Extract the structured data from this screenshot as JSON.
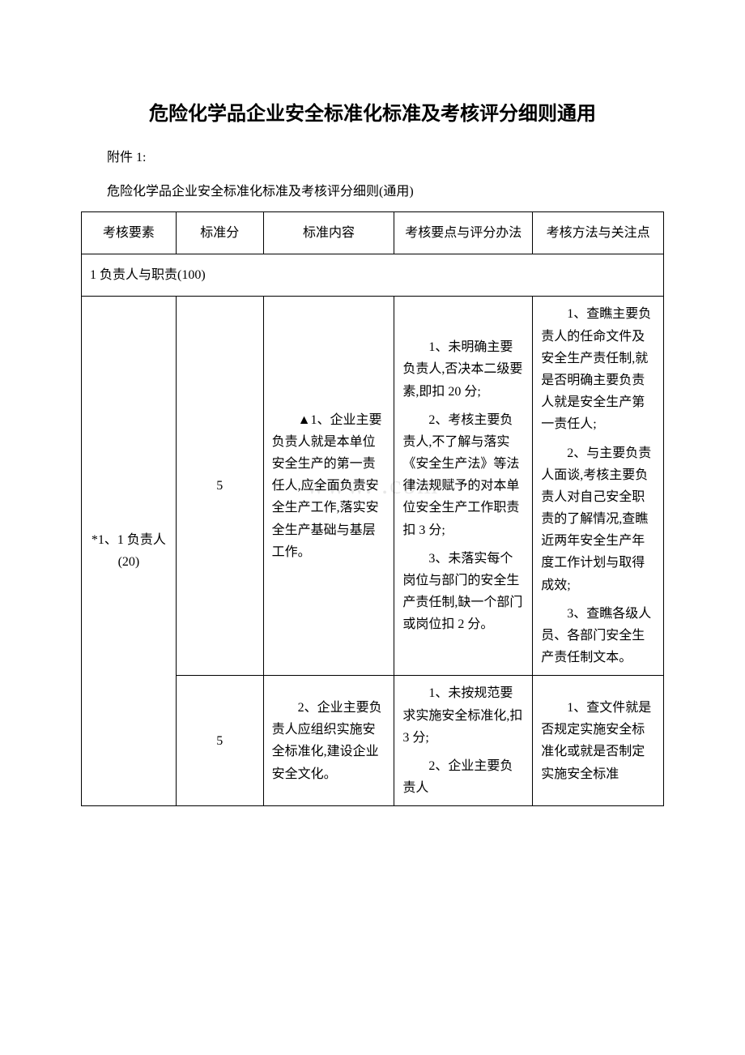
{
  "document": {
    "title": "危险化学品企业安全标准化标准及考核评分细则通用",
    "appendix_label": "附件 1:",
    "subtitle": "危险化学品企业安全标准化标准及考核评分细则(通用)"
  },
  "watermark": "www.            .com",
  "table": {
    "headers": {
      "col1": "考核要素",
      "col2": "标准分",
      "col3": "标准内容",
      "col4": "考核要点与评分办法",
      "col5": "考核方法与关注点"
    },
    "section": "1 负责人与职责(100)",
    "rows": [
      {
        "element": "*1、1 负责人(20)",
        "score": "5",
        "content_p1": "▲1、企业主要负责人就是本单位安全生产的第一责任人,应全面负责安全生产工作,落实安全生产基础与基层工作。",
        "points_p1": "1、未明确主要负责人,否决本二级要素,即扣 20 分;",
        "points_p2": "2、考核主要负责人,不了解与落实《安全生产法》等法律法规赋予的对本单位安全生产工作职责扣 3 分;",
        "points_p3": "3、未落实每个岗位与部门的安全生产责任制,缺一个部门或岗位扣 2 分。",
        "method_p1": "1、查瞧主要负责人的任命文件及安全生产责任制,就是否明确主要负责人就是安全生产第一责任人;",
        "method_p2": "2、与主要负责人面谈,考核主要负责人对自己安全职责的了解情况,查瞧近两年安全生产年度工作计划与取得成效;",
        "method_p3": "3、查瞧各级人员、各部门安全生产责任制文本。"
      },
      {
        "score": "5",
        "content_p1": "2、企业主要负责人应组织实施安全标准化,建设企业安全文化。",
        "points_p1": "1、未按规范要求实施安全标准化,扣 3 分;",
        "points_p2": "2、企业主要负责人",
        "method_p1": "1、查文件就是否规定实施安全标准化或就是否制定实施安全标准"
      }
    ]
  }
}
